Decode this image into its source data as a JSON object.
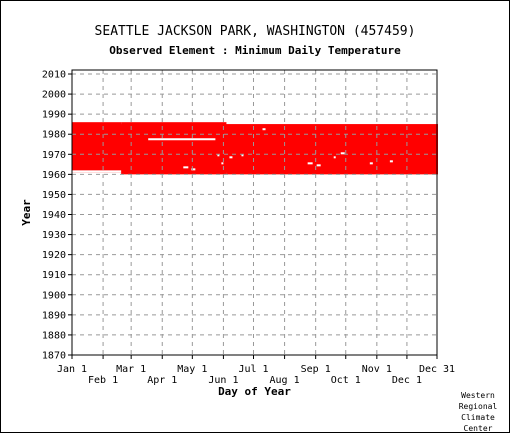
{
  "title": {
    "station": "SEATTLE JACKSON PARK, WASHINGTON   (457459)",
    "element": "Observed Element : Minimum Daily Temperature"
  },
  "credit": [
    "Western",
    "Regional",
    "Climate",
    "Center"
  ],
  "colors": {
    "data": "#ff0000",
    "grid": "#999999",
    "axis": "#000000"
  },
  "chart_data": {
    "type": "scatter",
    "xlabel": "Day of Year",
    "ylabel": "Year",
    "xlim": [
      1,
      365
    ],
    "ylim": [
      1870,
      2012
    ],
    "grid": true,
    "x_ticks_row1": [
      {
        "label": "Jan 1",
        "day": 1
      },
      {
        "label": "Mar 1",
        "day": 60
      },
      {
        "label": "May 1",
        "day": 121
      },
      {
        "label": "Jul 1",
        "day": 182
      },
      {
        "label": "Sep 1",
        "day": 244
      },
      {
        "label": "Nov 1",
        "day": 305
      },
      {
        "label": "Dec 31",
        "day": 365
      }
    ],
    "x_ticks_row2": [
      {
        "label": "Feb 1",
        "day": 32
      },
      {
        "label": "Apr 1",
        "day": 91
      },
      {
        "label": "Jun 1",
        "day": 152
      },
      {
        "label": "Aug 1",
        "day": 213
      },
      {
        "label": "Oct 1",
        "day": 274
      },
      {
        "label": "Dec 1",
        "day": 335
      }
    ],
    "y_ticks": [
      1870,
      1880,
      1890,
      1900,
      1910,
      1920,
      1930,
      1940,
      1950,
      1960,
      1970,
      1980,
      1990,
      2000,
      2010
    ],
    "observed_periods": [
      {
        "day_start": 1,
        "day_end": 365,
        "year_start": 1961,
        "year_end": 1984
      },
      {
        "day_start": 1,
        "day_end": 49,
        "year_start": 1961,
        "year_end": 1985
      },
      {
        "day_start": 50,
        "day_end": 154,
        "year_start": 1960,
        "year_end": 1985
      },
      {
        "day_start": 155,
        "day_end": 365,
        "year_start": 1960,
        "year_end": 1984
      }
    ],
    "missing_segments": [
      {
        "day_start": 77,
        "day_end": 143,
        "year": 1977
      },
      {
        "day_start": 1,
        "day_end": 49,
        "year": 1961
      },
      {
        "day_start": 112,
        "day_end": 116,
        "year": 1963
      },
      {
        "day_start": 120,
        "day_end": 123,
        "year": 1962
      },
      {
        "day_start": 146,
        "day_end": 147,
        "year": 1969
      },
      {
        "day_start": 158,
        "day_end": 160,
        "year": 1968
      },
      {
        "day_start": 170,
        "day_end": 171,
        "year": 1969
      },
      {
        "day_start": 150,
        "day_end": 151,
        "year": 1965
      },
      {
        "day_start": 191,
        "day_end": 193,
        "year": 1982
      },
      {
        "day_start": 236,
        "day_end": 240,
        "year": 1965
      },
      {
        "day_start": 245,
        "day_end": 248,
        "year": 1964
      },
      {
        "day_start": 262,
        "day_end": 263,
        "year": 1968
      },
      {
        "day_start": 269,
        "day_end": 272,
        "year": 1970
      },
      {
        "day_start": 298,
        "day_end": 300,
        "year": 1965
      },
      {
        "day_start": 318,
        "day_end": 320,
        "year": 1966
      }
    ]
  }
}
